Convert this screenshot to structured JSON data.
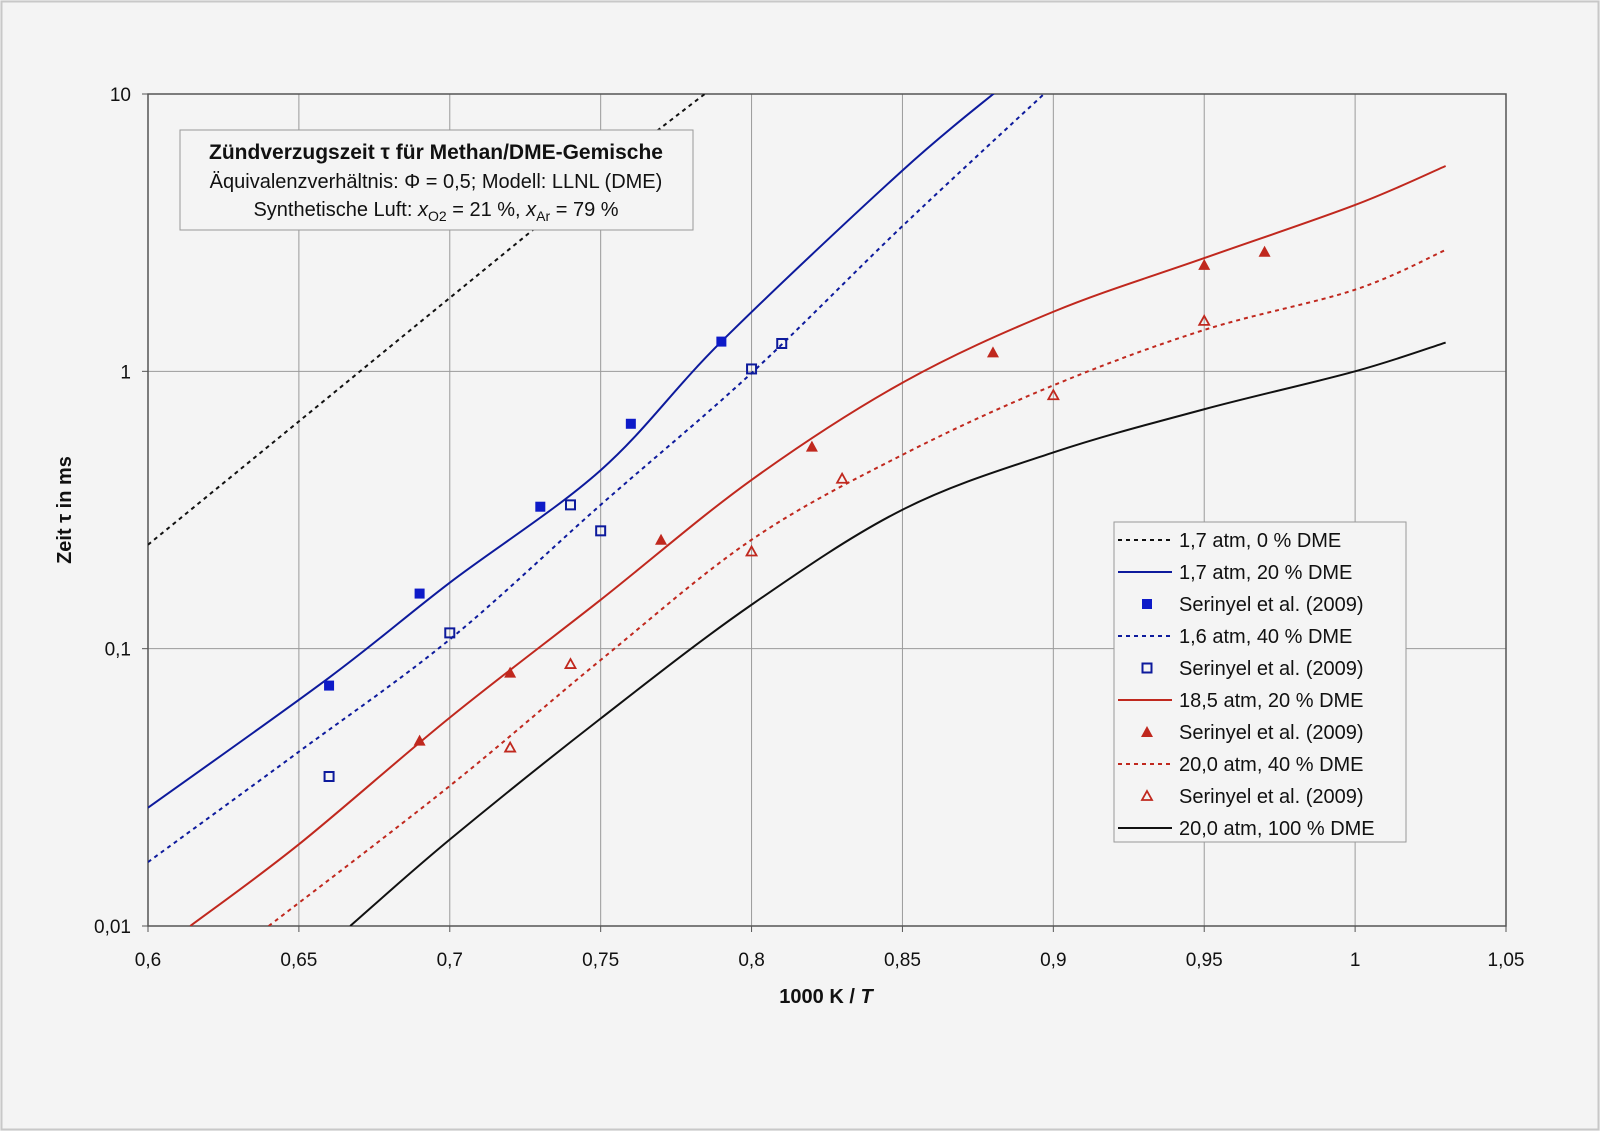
{
  "chart_data": {
    "type": "line",
    "title": {
      "line1": "Zündverzugszeit τ für Methan/DME-Gemische",
      "line2": "Äquivalenzverhältnis: Φ = 0,5; Modell: LLNL (DME)",
      "line3_prefix": "Synthetische Luft: ",
      "x_var": "x",
      "sub_o2": "O2",
      "mid": " = 21 %, ",
      "sub_ar": "Ar",
      "end": " = 79 %"
    },
    "xlabel": {
      "text": "1000 K / ",
      "var": "T"
    },
    "ylabel": "Zeit τ in ms",
    "xlim": [
      0.6,
      1.05
    ],
    "ylim": [
      0.01,
      10
    ],
    "yscale": "log",
    "grid": true,
    "legend_position": "right",
    "x_ticks": [
      "0,6",
      "0,65",
      "0,7",
      "0,75",
      "0,8",
      "0,85",
      "0,9",
      "0,95",
      "1",
      "1,05"
    ],
    "y_ticks": [
      "0,01",
      "0,1",
      "1",
      "10"
    ],
    "series": [
      {
        "name": "1,7 atm, 0 % DME",
        "kind": "line",
        "style": "dotted",
        "color": "#111111",
        "x": [
          0.6,
          0.65,
          0.7,
          0.75,
          0.787
        ],
        "y": [
          0.237,
          0.66,
          1.84,
          5.1,
          10.5
        ]
      },
      {
        "name": "1,7 atm, 20 % DME",
        "kind": "line",
        "style": "solid",
        "color": "#0d1a9c",
        "x": [
          0.6,
          0.66,
          0.7,
          0.75,
          0.79,
          0.85,
          0.882
        ],
        "y": [
          0.0267,
          0.0786,
          0.173,
          0.44,
          1.28,
          5.3,
          10.4
        ]
      },
      {
        "name": "Serinyel et al. (2009)",
        "kind": "marker",
        "marker": "square-filled",
        "color": "#0d1ac8",
        "x": [
          0.66,
          0.69,
          0.73,
          0.76,
          0.79
        ],
        "y": [
          0.0736,
          0.158,
          0.325,
          0.647,
          1.28
        ]
      },
      {
        "name": "1,6 atm, 40 % DME",
        "kind": "line",
        "style": "dotted",
        "color": "#0d1a9c",
        "x": [
          0.6,
          0.65,
          0.7,
          0.75,
          0.8,
          0.85,
          0.899
        ],
        "y": [
          0.017,
          0.0425,
          0.108,
          0.33,
          0.986,
          3.34,
          10.5
        ]
      },
      {
        "name": "Serinyel et al. (2009)",
        "kind": "marker",
        "marker": "square-open",
        "color": "#0d1a9c",
        "x": [
          0.66,
          0.7,
          0.74,
          0.75,
          0.8,
          0.81
        ],
        "y": [
          0.0346,
          0.114,
          0.33,
          0.266,
          1.02,
          1.26
        ]
      },
      {
        "name": "18,5 atm, 20 % DME",
        "kind": "line",
        "style": "solid",
        "color": "#c0281e",
        "x": [
          0.614,
          0.65,
          0.7,
          0.75,
          0.8,
          0.85,
          0.9,
          0.95,
          1.0,
          1.03
        ],
        "y": [
          0.01,
          0.0197,
          0.0564,
          0.15,
          0.406,
          0.91,
          1.64,
          2.56,
          3.98,
          5.5
        ]
      },
      {
        "name": "Serinyel et al. (2009)",
        "kind": "marker",
        "marker": "triangle-filled",
        "color": "#c0281e",
        "x": [
          0.69,
          0.72,
          0.77,
          0.82,
          0.88,
          0.95,
          0.97
        ],
        "y": [
          0.0466,
          0.082,
          0.247,
          0.535,
          1.17,
          2.42,
          2.7
        ]
      },
      {
        "name": "20,0 atm, 40 % DME",
        "kind": "line",
        "style": "dotted",
        "color": "#c0281e",
        "x": [
          0.64,
          0.7,
          0.75,
          0.8,
          0.85,
          0.9,
          0.95,
          1.0,
          1.03
        ],
        "y": [
          0.01,
          0.032,
          0.091,
          0.247,
          0.5,
          0.89,
          1.41,
          1.97,
          2.74
        ]
      },
      {
        "name": "Serinyel et al. (2009)",
        "kind": "marker",
        "marker": "triangle-open",
        "color": "#c0281e",
        "x": [
          0.72,
          0.74,
          0.8,
          0.83,
          0.9,
          0.95
        ],
        "y": [
          0.044,
          0.088,
          0.224,
          0.41,
          0.82,
          1.52
        ]
      },
      {
        "name": "20,0 atm, 100 % DME",
        "kind": "line",
        "style": "solid",
        "color": "#111111",
        "x": [
          0.667,
          0.7,
          0.75,
          0.8,
          0.85,
          0.9,
          0.95,
          1.0,
          1.03
        ],
        "y": [
          0.01,
          0.0205,
          0.056,
          0.144,
          0.317,
          0.51,
          0.73,
          1.0,
          1.27
        ]
      }
    ]
  }
}
